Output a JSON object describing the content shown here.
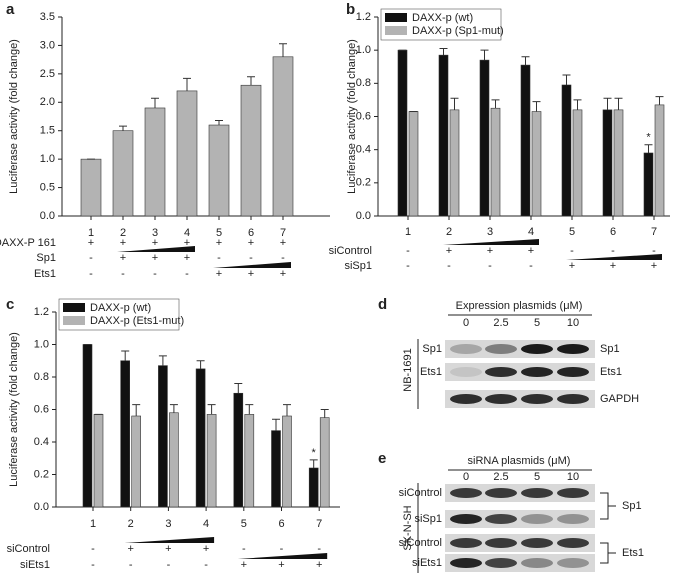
{
  "chart_data": [
    {
      "type": "bar",
      "panel": "a",
      "y_label": "Luciferase activity (fold change)",
      "categories": [
        "1",
        "2",
        "3",
        "4",
        "5",
        "6",
        "7"
      ],
      "values": [
        1.0,
        1.5,
        1.9,
        2.2,
        1.6,
        2.3,
        2.8
      ],
      "errors": [
        0,
        0.08,
        0.17,
        0.22,
        0.08,
        0.15,
        0.23
      ],
      "color": "#b3b3b3",
      "ylim": [
        0,
        3.5
      ],
      "yticks": [
        {
          "value": 0,
          "label": "0.0"
        },
        0.5,
        {
          "value": 1,
          "label": "1.0"
        },
        1.5,
        {
          "value": 2,
          "label": "2.0"
        },
        2.5,
        {
          "value": 3,
          "label": "3.0"
        },
        3.5
      ],
      "conditions": [
        {
          "label": "DAXX-P 161",
          "values": [
            "+",
            "+",
            "+",
            "+",
            "+",
            "+",
            "+"
          ]
        },
        {
          "label": "Sp1",
          "values": [
            "-",
            "+",
            "+",
            "+",
            "-",
            "-",
            "-"
          ]
        },
        {
          "label": "Ets1",
          "values": [
            "-",
            "-",
            "-",
            "-",
            "+",
            "+",
            "+"
          ]
        }
      ]
    },
    {
      "type": "bar",
      "panel": "b",
      "y_label": "Luciferase activity (fold change)",
      "categories": [
        "1",
        "2",
        "3",
        "4",
        "5",
        "6",
        "7"
      ],
      "series": [
        {
          "name": "DAXX-p (wt)",
          "color": "#111111",
          "values": [
            1.0,
            0.97,
            0.94,
            0.91,
            0.79,
            0.64,
            0.38
          ],
          "errors": [
            0,
            0.04,
            0.06,
            0.05,
            0.06,
            0.07,
            0.05
          ]
        },
        {
          "name": "DAXX-p (Sp1-mut)",
          "color": "#b3b3b3",
          "values": [
            0.63,
            0.64,
            0.65,
            0.63,
            0.64,
            0.64,
            0.67
          ],
          "errors": [
            0,
            0.07,
            0.05,
            0.06,
            0.06,
            0.07,
            0.05
          ]
        }
      ],
      "annotation": "*",
      "legend": "upper left",
      "ylim": [
        0,
        1.2
      ],
      "yticks": [
        {
          "value": 0,
          "label": "0.0"
        },
        0.2,
        0.4,
        0.6,
        0.8,
        {
          "value": 1,
          "label": "1.0"
        },
        1.2
      ],
      "conditions": [
        {
          "label": "siControl",
          "values": [
            "-",
            "+",
            "+",
            "+",
            "-",
            "-",
            "-"
          ]
        },
        {
          "label": "siSp1",
          "values": [
            "-",
            "-",
            "-",
            "-",
            "+",
            "+",
            "+"
          ]
        }
      ]
    },
    {
      "type": "bar",
      "panel": "c",
      "y_label": "Luciferase activity (fold change)",
      "categories": [
        "1",
        "2",
        "3",
        "4",
        "5",
        "6",
        "7"
      ],
      "series": [
        {
          "name": "DAXX-p (wt)",
          "color": "#111111",
          "values": [
            1.0,
            0.9,
            0.87,
            0.85,
            0.7,
            0.47,
            0.24
          ],
          "errors": [
            0,
            0.06,
            0.06,
            0.05,
            0.06,
            0.07,
            0.05
          ]
        },
        {
          "name": "DAXX-p (Ets1-mut)",
          "color": "#b3b3b3",
          "values": [
            0.57,
            0.56,
            0.58,
            0.57,
            0.57,
            0.56,
            0.55
          ],
          "errors": [
            0,
            0.07,
            0.05,
            0.06,
            0.06,
            0.07,
            0.05
          ]
        }
      ],
      "annotation": "*",
      "legend": "upper left",
      "ylim": [
        0,
        1.2
      ],
      "yticks": [
        {
          "value": 0,
          "label": "0.0"
        },
        0.2,
        0.4,
        0.6,
        0.8,
        {
          "value": 1,
          "label": "1.0"
        },
        1.2
      ],
      "conditions": [
        {
          "label": "siControl",
          "values": [
            "-",
            "+",
            "+",
            "+",
            "-",
            "-",
            "-"
          ]
        },
        {
          "label": "siEts1",
          "values": [
            "-",
            "-",
            "-",
            "-",
            "+",
            "+",
            "+"
          ]
        }
      ]
    }
  ],
  "blots": [
    {
      "letter": "d",
      "title": "Expression plasmids (μM)",
      "lanes": [
        "0",
        "2.5",
        "5",
        "10"
      ],
      "left_labels": [
        "Sp1",
        "Ets1"
      ],
      "right_labels": [
        "Sp1",
        "Ets1",
        "GAPDH"
      ],
      "cell_line": "NB-1691"
    },
    {
      "letter": "e",
      "title": "siRNA plasmids (μM)",
      "lanes": [
        "0",
        "2.5",
        "5",
        "10"
      ],
      "left_labels": [
        "siControl",
        "siSp1",
        "siControl",
        "siEts1"
      ],
      "right_labels": [
        "Sp1",
        "Ets1"
      ],
      "cell_line": "SK-N-SH"
    }
  ]
}
